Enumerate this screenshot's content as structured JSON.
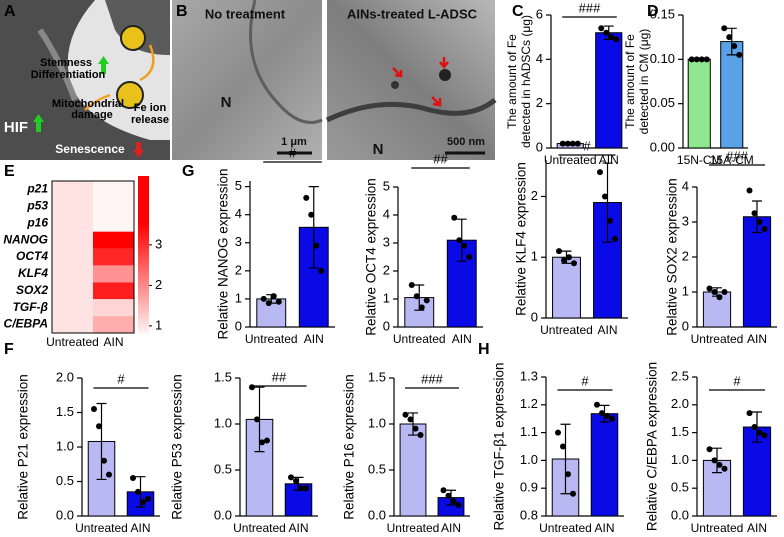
{
  "panel_labels": [
    "A",
    "B",
    "C",
    "D",
    "E",
    "F",
    "G",
    "H"
  ],
  "schematic_texts": [
    "Stemness",
    "Differentiation",
    "Mitochondrial",
    "damage",
    "Fe ion",
    "release",
    "HIF",
    "Senescence"
  ],
  "micrograph_texts": [
    "No treatment",
    "N",
    "1 μm",
    "AINs-treated L-ADSC",
    "N",
    "500 nm"
  ],
  "chart_data": [
    {
      "type": "bar",
      "ylabel": [
        "The amount of Fe",
        "detected in hADSCs (μg)"
      ],
      "categories": [
        "Untreated",
        "AIN"
      ],
      "values": [
        0.2,
        5.2
      ],
      "errors": [
        0.05,
        0.3
      ],
      "points": [
        [
          0.2,
          0.2,
          0.2,
          0.2
        ],
        [
          5.4,
          5.2,
          5.0,
          4.9
        ]
      ],
      "colors": [
        "#b8b8f2",
        "#0a0ae6"
      ],
      "ylim": [
        0,
        6
      ],
      "yticks": [
        0,
        2,
        4,
        6
      ],
      "significance": "###"
    },
    {
      "type": "bar",
      "ylabel": [
        "The amount of Fe",
        "detected in CM (μg)"
      ],
      "categories": [
        "15N-CM",
        "15A-CM"
      ],
      "values": [
        0.1,
        0.12
      ],
      "errors": [
        0.001,
        0.015
      ],
      "points": [
        [
          0.1,
          0.1,
          0.1,
          0.1
        ],
        [
          0.135,
          0.125,
          0.115,
          0.105
        ]
      ],
      "colors": [
        "#8fe88f",
        "#5aa2e8"
      ],
      "ylim": [
        0,
        0.15
      ],
      "yticks": [
        {
          "value": 0,
          "label": "0.00"
        },
        {
          "value": 0.05,
          "label": "0.05"
        },
        {
          "value": 0.1,
          "label": "0.10"
        },
        {
          "value": 0.15,
          "label": "0.15"
        }
      ]
    },
    {
      "type": "heatmap",
      "rows": [
        "p21",
        "p53",
        "p16",
        "NANOG",
        "OCT4",
        "KLF4",
        "SOX2",
        "TGF-β",
        "C/EBPA"
      ],
      "columns": [
        "Untreated",
        "AIN"
      ],
      "values": [
        [
          1,
          0.35
        ],
        [
          1,
          0.35
        ],
        [
          1,
          0.2
        ],
        [
          1,
          3.6
        ],
        [
          1,
          3.1
        ],
        [
          1,
          1.9
        ],
        [
          1,
          3.2
        ],
        [
          1,
          1.17
        ],
        [
          1,
          1.6
        ]
      ],
      "clim": [
        0.8,
        4.7
      ],
      "cticks": [
        1,
        2,
        3
      ]
    },
    {
      "type": "bar",
      "ylabel": [
        "Relative NANOG expression"
      ],
      "categories": [
        "Untreated",
        "AIN"
      ],
      "values": [
        1.0,
        3.55
      ],
      "errors": [
        0.15,
        1.45
      ],
      "points": [
        [
          1.0,
          0.85,
          1.1,
          0.9
        ],
        [
          4.6,
          4.0,
          2.9,
          2.0
        ]
      ],
      "colors": [
        "#b8b8f2",
        "#0a0ae6"
      ],
      "ylim": [
        0,
        5.2
      ],
      "yticks": [
        0,
        1,
        2,
        3,
        4,
        5
      ],
      "significance": "#"
    },
    {
      "type": "bar",
      "ylabel": [
        "Relative OCT4 expression"
      ],
      "categories": [
        "Untreated",
        "AIN"
      ],
      "values": [
        1.05,
        3.1
      ],
      "errors": [
        0.45,
        0.75
      ],
      "points": [
        [
          1.5,
          1.1,
          0.7,
          0.95
        ],
        [
          3.9,
          3.1,
          2.9,
          2.5
        ]
      ],
      "colors": [
        "#b8b8f2",
        "#0a0ae6"
      ],
      "ylim": [
        0,
        5
      ],
      "yticks": [
        0,
        1,
        2,
        3,
        4,
        5
      ],
      "significance": "##"
    },
    {
      "type": "bar",
      "ylabel": [
        "Relative KLF4 expression"
      ],
      "categories": [
        "Untreated",
        "AIN"
      ],
      "values": [
        1.0,
        1.9
      ],
      "errors": [
        0.1,
        0.65
      ],
      "points": [
        [
          1.1,
          0.95,
          1.0,
          0.9
        ],
        [
          2.4,
          2.0,
          1.6,
          1.3
        ]
      ],
      "colors": [
        "#b8b8f2",
        "#0a0ae6"
      ],
      "ylim": [
        0,
        2.6
      ],
      "yticks": [
        0,
        1,
        2
      ],
      "significance": "#"
    },
    {
      "type": "bar",
      "ylabel": [
        "Relative SOX2 expression"
      ],
      "categories": [
        "Untreated",
        "AIN"
      ],
      "values": [
        1.0,
        3.15
      ],
      "errors": [
        0.12,
        0.45
      ],
      "points": [
        [
          1.1,
          1.0,
          0.85,
          1.0
        ],
        [
          3.9,
          3.25,
          3.0,
          2.8
        ]
      ],
      "colors": [
        "#b8b8f2",
        "#0a0ae6"
      ],
      "ylim": [
        0,
        4
      ],
      "yticks": [
        0,
        1,
        2,
        3,
        4
      ],
      "significance": "###"
    },
    {
      "type": "bar",
      "ylabel": [
        "Relative P21 expression"
      ],
      "categories": [
        "Untreated",
        "AIN"
      ],
      "values": [
        1.08,
        0.35
      ],
      "errors": [
        0.55,
        0.22
      ],
      "points": [
        [
          1.55,
          1.3,
          0.8,
          0.6
        ],
        [
          0.55,
          0.35,
          0.2,
          0.25
        ]
      ],
      "colors": [
        "#b8b8f2",
        "#0a0ae6"
      ],
      "ylim": [
        0,
        2
      ],
      "yticks": [
        {
          "value": 0,
          "label": "0.0"
        },
        {
          "value": 0.5,
          "label": "0.5"
        },
        {
          "value": 1,
          "label": "1.0"
        },
        {
          "value": 1.5,
          "label": "1.5"
        },
        {
          "value": 2,
          "label": "2.0"
        }
      ],
      "significance": "#"
    },
    {
      "type": "bar",
      "ylabel": [
        "Relative P53 expression"
      ],
      "categories": [
        "Untreated",
        "AIN"
      ],
      "values": [
        1.05,
        0.35
      ],
      "errors": [
        0.35,
        0.07
      ],
      "points": [
        [
          1.4,
          1.05,
          0.8,
          0.82
        ],
        [
          0.42,
          0.38,
          0.3,
          0.3
        ]
      ],
      "colors": [
        "#b8b8f2",
        "#0a0ae6"
      ],
      "ylim": [
        0,
        1.5
      ],
      "yticks": [
        {
          "value": 0,
          "label": "0.0"
        },
        {
          "value": 0.5,
          "label": "0.5"
        },
        {
          "value": 1,
          "label": "1.0"
        },
        {
          "value": 1.5,
          "label": "1.5"
        }
      ],
      "significance": "##"
    },
    {
      "type": "bar",
      "ylabel": [
        "Relative P16 expression"
      ],
      "categories": [
        "Untreated",
        "AIN"
      ],
      "values": [
        1.0,
        0.2
      ],
      "errors": [
        0.12,
        0.08
      ],
      "points": [
        [
          1.1,
          1.05,
          0.95,
          0.88
        ],
        [
          0.28,
          0.22,
          0.16,
          0.12
        ]
      ],
      "colors": [
        "#b8b8f2",
        "#0a0ae6"
      ],
      "ylim": [
        0,
        1.5
      ],
      "yticks": [
        {
          "value": 0,
          "label": "0.0"
        },
        {
          "value": 0.5,
          "label": "0.5"
        },
        {
          "value": 1,
          "label": "1.0"
        },
        {
          "value": 1.5,
          "label": "1.5"
        }
      ],
      "significance": "###"
    },
    {
      "type": "bar",
      "ylabel": [
        "Relative TGF-β1 expression"
      ],
      "categories": [
        "Untreated",
        "AIN"
      ],
      "values": [
        1.005,
        1.168
      ],
      "errors": [
        0.125,
        0.03
      ],
      "points": [
        [
          1.1,
          1.05,
          0.95,
          0.88
        ],
        [
          1.2,
          1.17,
          1.16,
          1.15
        ]
      ],
      "colors": [
        "#b8b8f2",
        "#0a0ae6"
      ],
      "ylim": [
        0.8,
        1.3
      ],
      "yticks": [
        {
          "value": 0.8,
          "label": "0.8"
        },
        {
          "value": 0.9,
          "label": "0.9"
        },
        {
          "value": 1,
          "label": "1.0"
        },
        {
          "value": 1.1,
          "label": "1.1"
        },
        {
          "value": 1.2,
          "label": "1.2"
        },
        {
          "value": 1.3,
          "label": "1.3"
        }
      ],
      "significance": "#"
    },
    {
      "type": "bar",
      "ylabel": [
        "Relative C/EBPA expression"
      ],
      "categories": [
        "Untreated",
        "AIN"
      ],
      "values": [
        1.0,
        1.6
      ],
      "errors": [
        0.22,
        0.27
      ],
      "points": [
        [
          1.2,
          1.0,
          0.92,
          0.85
        ],
        [
          1.85,
          1.6,
          1.5,
          1.45
        ]
      ],
      "colors": [
        "#b8b8f2",
        "#0a0ae6"
      ],
      "ylim": [
        0,
        2.5
      ],
      "yticks": [
        {
          "value": 0,
          "label": "0.0"
        },
        {
          "value": 0.5,
          "label": "0.5"
        },
        {
          "value": 1,
          "label": "1.0"
        },
        {
          "value": 1.5,
          "label": "1.5"
        },
        {
          "value": 2,
          "label": "2.0"
        },
        {
          "value": 2.5,
          "label": "2.5"
        }
      ],
      "significance": "#"
    }
  ]
}
